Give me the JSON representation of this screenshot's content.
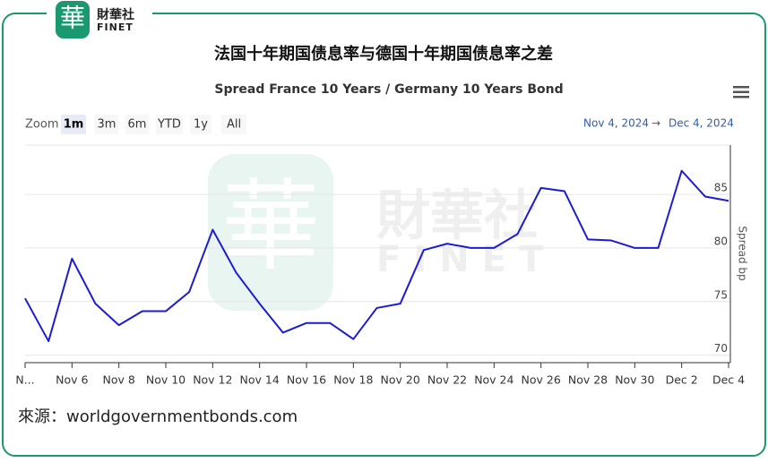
{
  "logo": {
    "mark": "華",
    "name": "財華社",
    "latin": "FINET"
  },
  "controls": {
    "zoom_label": "Zoom",
    "zoom_buttons": [
      "1m",
      "3m",
      "6m",
      "YTD",
      "1y",
      "All"
    ],
    "selected": "1m",
    "range_from": "Nov 4, 2024",
    "range_arrow": "→",
    "range_to": "Dec 4, 2024"
  },
  "chart_data": {
    "type": "line",
    "title": "法国十年期国债息率与德国十年期国债息率之差",
    "subtitle": "Spread France 10 Years / Germany 10 Years Bond",
    "y_label": "Spread bp",
    "categories": [
      "N...",
      null,
      "Nov 6",
      null,
      "Nov 8",
      null,
      "Nov 10",
      null,
      "Nov 12",
      null,
      "Nov 14",
      null,
      "Nov 16",
      null,
      "Nov 18",
      null,
      "Nov 20",
      null,
      "Nov 22",
      null,
      "Nov 24",
      null,
      "Nov 26",
      null,
      "Nov 28",
      null,
      "Nov 30",
      null,
      "Dec 2",
      null,
      "Dec 4"
    ],
    "series": [
      {
        "name": "Spread France 10 Years / Germany 10 Years Bond",
        "color": "#1c1cd4",
        "values": [
          75.3,
          71.3,
          79.0,
          74.8,
          72.8,
          74.1,
          74.1,
          75.9,
          81.7,
          77.7,
          74.8,
          72.1,
          73.0,
          73.0,
          71.5,
          74.4,
          74.8,
          79.8,
          80.4,
          80.0,
          80.0,
          81.3,
          85.6,
          85.3,
          80.8,
          80.7,
          80.0,
          80.0,
          87.2,
          84.8,
          84.4
        ]
      }
    ],
    "ylim": [
      69.3,
      89.6
    ],
    "yticks": [
      70,
      75,
      80,
      85
    ],
    "grid": true
  },
  "source": "來源：worldgovernmentbonds.com"
}
